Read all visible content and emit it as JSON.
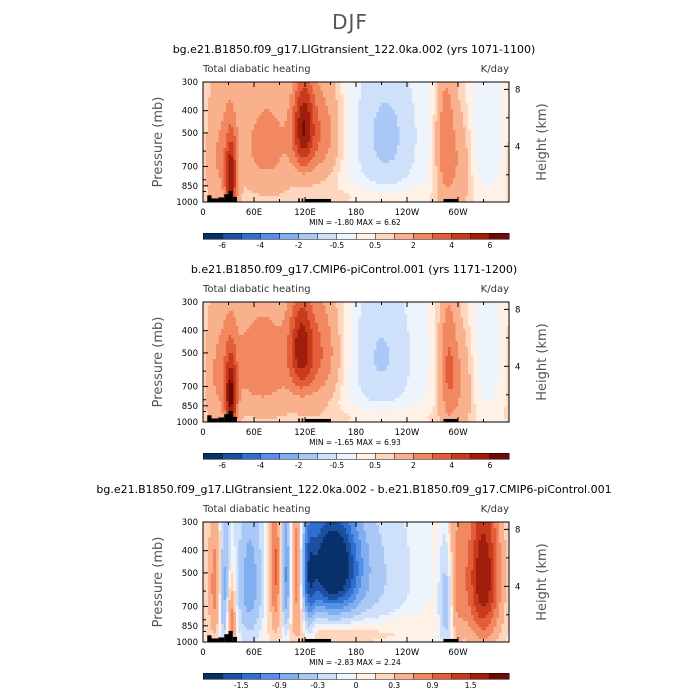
{
  "page": {
    "title": "DJF"
  },
  "palettes": {
    "full": [
      "#08306b",
      "#1c4fa0",
      "#2f6fd0",
      "#5590e6",
      "#81aef0",
      "#a9c8f5",
      "#cfe0fa",
      "#eef4fc",
      "#fff1e6",
      "#fdd6bd",
      "#f9b08d",
      "#f28860",
      "#e25d38",
      "#c83a1c",
      "#a11d0c",
      "#700a05"
    ],
    "diff": [
      "#08306b",
      "#1c4fa0",
      "#2f6fd0",
      "#5590e6",
      "#81aef0",
      "#a9c8f5",
      "#cfe0fa",
      "#eef4fc",
      "#fff1e6",
      "#fdd6bd",
      "#f9b08d",
      "#f28860",
      "#e25d38",
      "#c83a1c",
      "#a11d0c",
      "#700a05"
    ]
  },
  "chart_data": [
    {
      "type": "heatmap",
      "title": "bg.e21.B1850.f09_g17.LIGtransient_122.0ka.002 (yrs 1071-1100)",
      "left_label": "Total diabatic heating",
      "units": "K/day",
      "ylabel": "Pressure (mb)",
      "ylabel_right": "Height (km)",
      "x_ticks": [
        "0",
        "60E",
        "120E",
        "180",
        "120W",
        "60W"
      ],
      "x_tick_values": [
        0,
        60,
        120,
        180,
        240,
        300
      ],
      "xlim": [
        0,
        360
      ],
      "y_ticks": [
        "300",
        "400",
        "500",
        "700",
        "850",
        "1000"
      ],
      "y_tick_values": [
        300,
        400,
        500,
        700,
        850,
        1000
      ],
      "ylim": [
        1000,
        300
      ],
      "height_ticks": [
        "8",
        "4"
      ],
      "height_tick_values": [
        8,
        4
      ],
      "stats_text": "MIN =    -1.80   MAX =     6.62",
      "min": -1.8,
      "max": 6.62,
      "colorbar_levels": [
        -7,
        -6,
        -5,
        -4,
        -3,
        -2,
        -1,
        -0.5,
        0,
        0.5,
        1,
        2,
        3,
        4,
        5,
        6,
        7
      ],
      "colorbar_labels": [
        "-6",
        "-4",
        "-2",
        "-0.5",
        "0.5",
        "2",
        "4",
        "6"
      ],
      "palette": "full",
      "base": 0.25,
      "features": [
        {
          "lon": 18,
          "p": 620,
          "wl": 14,
          "wp": 320,
          "amp": 1.8
        },
        {
          "lon": 33,
          "p": 800,
          "wl": 5,
          "wp": 220,
          "amp": 4.5
        },
        {
          "lon": 75,
          "p": 560,
          "wl": 26,
          "wp": 240,
          "amp": 2.2
        },
        {
          "lon": 118,
          "p": 470,
          "wl": 9,
          "wp": 160,
          "amp": 4.5
        },
        {
          "lon": 140,
          "p": 500,
          "wl": 16,
          "wp": 200,
          "amp": 2.3
        },
        {
          "lon": 215,
          "p": 520,
          "wl": 32,
          "wp": 320,
          "amp": -1.4
        },
        {
          "lon": 285,
          "p": 560,
          "wl": 8,
          "wp": 280,
          "amp": 2.6
        },
        {
          "lon": 303,
          "p": 660,
          "wl": 10,
          "wp": 260,
          "amp": 1.6
        },
        {
          "lon": 335,
          "p": 500,
          "wl": 25,
          "wp": 280,
          "amp": -0.7
        },
        {
          "lon": 200,
          "p": 950,
          "wl": 80,
          "wp": 70,
          "amp": 0.5
        }
      ],
      "topo": [
        [
          5,
          10,
          935
        ],
        [
          10,
          18,
          965
        ],
        [
          18,
          25,
          955
        ],
        [
          25,
          30,
          925
        ],
        [
          30,
          35,
          895
        ],
        [
          35,
          40,
          950
        ],
        [
          112,
          114,
          965
        ],
        [
          116,
          118,
          965
        ],
        [
          120,
          150,
          970
        ],
        [
          283,
          300,
          970
        ]
      ]
    },
    {
      "type": "heatmap",
      "title": "b.e21.B1850.f09_g17.CMIP6-piControl.001 (yrs 1171-1200)",
      "left_label": "Total diabatic heating",
      "units": "K/day",
      "ylabel": "Pressure (mb)",
      "ylabel_right": "Height (km)",
      "x_ticks": [
        "0",
        "60E",
        "120E",
        "180",
        "120W",
        "60W"
      ],
      "x_tick_values": [
        0,
        60,
        120,
        180,
        240,
        300
      ],
      "xlim": [
        0,
        360
      ],
      "y_ticks": [
        "300",
        "400",
        "500",
        "700",
        "850",
        "1000"
      ],
      "y_tick_values": [
        300,
        400,
        500,
        700,
        850,
        1000
      ],
      "ylim": [
        1000,
        300
      ],
      "height_ticks": [
        "8",
        "4"
      ],
      "height_tick_values": [
        8,
        4
      ],
      "stats_text": "MIN =    -1.65   MAX =     6.93",
      "min": -1.65,
      "max": 6.93,
      "colorbar_levels": [
        -7,
        -6,
        -5,
        -4,
        -3,
        -2,
        -1,
        -0.5,
        0,
        0.5,
        1,
        2,
        3,
        4,
        5,
        6,
        7
      ],
      "colorbar_labels": [
        "-6",
        "-4",
        "-2",
        "-0.5",
        "0.5",
        "2",
        "4",
        "6"
      ],
      "palette": "full",
      "base": 0.25,
      "features": [
        {
          "lon": 18,
          "p": 620,
          "wl": 14,
          "wp": 320,
          "amp": 1.7
        },
        {
          "lon": 33,
          "p": 800,
          "wl": 5,
          "wp": 220,
          "amp": 4.8
        },
        {
          "lon": 70,
          "p": 560,
          "wl": 28,
          "wp": 240,
          "amp": 2.6
        },
        {
          "lon": 115,
          "p": 470,
          "wl": 10,
          "wp": 170,
          "amp": 3.8
        },
        {
          "lon": 138,
          "p": 500,
          "wl": 18,
          "wp": 220,
          "amp": 2.6
        },
        {
          "lon": 210,
          "p": 520,
          "wl": 32,
          "wp": 320,
          "amp": -1.3
        },
        {
          "lon": 288,
          "p": 580,
          "wl": 8,
          "wp": 280,
          "amp": 2.8
        },
        {
          "lon": 305,
          "p": 660,
          "wl": 10,
          "wp": 260,
          "amp": 1.7
        },
        {
          "lon": 332,
          "p": 500,
          "wl": 25,
          "wp": 280,
          "amp": -0.6
        },
        {
          "lon": 200,
          "p": 950,
          "wl": 80,
          "wp": 70,
          "amp": 0.5
        }
      ],
      "topo": [
        [
          5,
          10,
          935
        ],
        [
          10,
          18,
          965
        ],
        [
          18,
          25,
          955
        ],
        [
          25,
          30,
          925
        ],
        [
          30,
          35,
          895
        ],
        [
          35,
          40,
          950
        ],
        [
          112,
          114,
          965
        ],
        [
          116,
          118,
          965
        ],
        [
          120,
          150,
          970
        ],
        [
          283,
          300,
          970
        ]
      ]
    },
    {
      "type": "heatmap",
      "title": "bg.e21.B1850.f09_g17.LIGtransient_122.0ka.002 - b.e21.B1850.f09_g17.CMIP6-piControl.001",
      "left_label": "Total diabatic heating",
      "units": "K/day",
      "ylabel": "Pressure (mb)",
      "ylabel_right": "Height (km)",
      "x_ticks": [
        "0",
        "60E",
        "120E",
        "180",
        "120W",
        "60W"
      ],
      "x_tick_values": [
        0,
        60,
        120,
        180,
        240,
        300
      ],
      "xlim": [
        0,
        360
      ],
      "y_ticks": [
        "300",
        "400",
        "500",
        "700",
        "850",
        "1000"
      ],
      "y_tick_values": [
        300,
        400,
        500,
        700,
        850,
        1000
      ],
      "ylim": [
        1000,
        300
      ],
      "height_ticks": [
        "8",
        "4"
      ],
      "height_tick_values": [
        8,
        4
      ],
      "stats_text": "MIN =    -2.83   MAX =     2.24",
      "min": -2.83,
      "max": 2.24,
      "colorbar_levels": [
        -2.1,
        -1.8,
        -1.5,
        -1.2,
        -0.9,
        -0.6,
        -0.3,
        -0.1,
        0,
        0.1,
        0.3,
        0.6,
        0.9,
        1.2,
        1.5,
        1.8,
        2.1
      ],
      "colorbar_labels": [
        "-1.5",
        "-0.9",
        "-0.3",
        "0",
        "0.3",
        "0.9",
        "1.5"
      ],
      "palette": "diff",
      "base": 0,
      "features": [
        {
          "lon": 15,
          "p": 560,
          "wl": 6,
          "wp": 260,
          "amp": 0.8
        },
        {
          "lon": 25,
          "p": 600,
          "wl": 5,
          "wp": 280,
          "amp": -0.9
        },
        {
          "lon": 33,
          "p": 780,
          "wl": 4,
          "wp": 200,
          "amp": 0.9
        },
        {
          "lon": 55,
          "p": 560,
          "wl": 10,
          "wp": 260,
          "amp": -0.8
        },
        {
          "lon": 85,
          "p": 480,
          "wl": 5,
          "wp": 240,
          "amp": 1.0
        },
        {
          "lon": 98,
          "p": 520,
          "wl": 4,
          "wp": 260,
          "amp": -0.9
        },
        {
          "lon": 110,
          "p": 480,
          "wl": 5,
          "wp": 240,
          "amp": 1.1
        },
        {
          "lon": 125,
          "p": 560,
          "wl": 5,
          "wp": 240,
          "amp": -0.8
        },
        {
          "lon": 152,
          "p": 470,
          "wl": 22,
          "wp": 180,
          "amp": -2.4
        },
        {
          "lon": 200,
          "p": 540,
          "wl": 30,
          "wp": 300,
          "amp": -0.3
        },
        {
          "lon": 287,
          "p": 650,
          "wl": 6,
          "wp": 260,
          "amp": -1.0
        },
        {
          "lon": 295,
          "p": 560,
          "wl": 10,
          "wp": 300,
          "amp": 0.8
        },
        {
          "lon": 330,
          "p": 520,
          "wl": 14,
          "wp": 300,
          "amp": 1.8
        },
        {
          "lon": 170,
          "p": 900,
          "wl": 60,
          "wp": 120,
          "amp": 0.3
        }
      ],
      "topo": [
        [
          5,
          10,
          935
        ],
        [
          10,
          18,
          965
        ],
        [
          18,
          25,
          955
        ],
        [
          25,
          30,
          925
        ],
        [
          30,
          35,
          895
        ],
        [
          35,
          40,
          950
        ],
        [
          112,
          114,
          965
        ],
        [
          116,
          118,
          965
        ],
        [
          120,
          150,
          970
        ],
        [
          283,
          300,
          970
        ]
      ]
    }
  ]
}
